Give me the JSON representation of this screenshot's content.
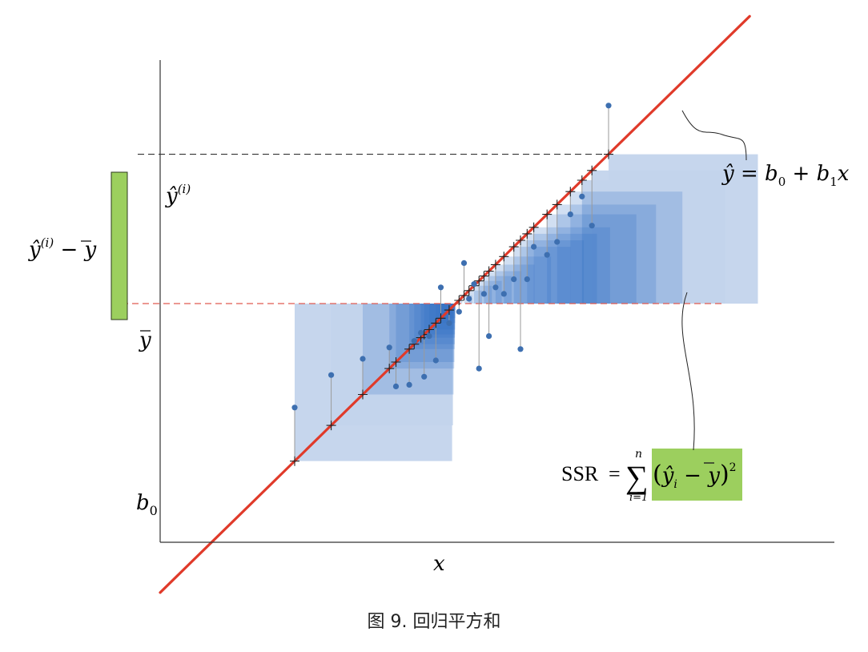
{
  "caption": "图 9. 回归平方和",
  "labels": {
    "x_axis": "x",
    "yhat_i": "ŷ",
    "yhat_i_sup": "(i)",
    "ybar": "y",
    "b0": "b",
    "b0_sub": "0",
    "green_bar": {
      "yhat": "ŷ",
      "sup": "(i)",
      "minus": " − ",
      "ybar": "y"
    },
    "equation": {
      "lhs": "ŷ",
      "eq": " = ",
      "b0": "b",
      "b0_sub": "0",
      "plus": " + ",
      "b1": "b",
      "b1_sub": "1",
      "x": "x"
    },
    "ssr": {
      "lhs": "SSR",
      "eq": "=",
      "sigma": "∑",
      "upper": "n",
      "lower": "i=1",
      "lparen": "(",
      "yhat": "ŷ",
      "sub_i": "i",
      "minus": " − ",
      "ybar": "y",
      "rparen": ")",
      "sup2": "2"
    }
  },
  "colors": {
    "regression_line": "#e03a2a",
    "mean_line": "#e05a50",
    "guide_line": "#333333",
    "square": "#2f6fc2",
    "square_light": "#c3d4ec",
    "point": "#3d6fb0",
    "green": "#9ccf5e",
    "axis": "#333333"
  },
  "chart_data": {
    "type": "scatter",
    "title": "",
    "xlabel": "x",
    "ylabel": "",
    "intercept_b0": -1.23,
    "slope_b1": 1.0,
    "y_mean": 0,
    "xlim": [
      -0.55,
      3.51
    ],
    "ylim": [
      -1.47,
      1.5
    ],
    "highlight_index": 0,
    "points": [
      {
        "x": 2.15,
        "y": 1.22
      },
      {
        "x": 0.26,
        "y": -0.64
      },
      {
        "x": 0.48,
        "y": -0.44
      },
      {
        "x": 0.67,
        "y": -0.34
      },
      {
        "x": 0.83,
        "y": -0.27
      },
      {
        "x": 0.87,
        "y": -0.51
      },
      {
        "x": 0.95,
        "y": -0.5
      },
      {
        "x": 0.98,
        "y": -0.23
      },
      {
        "x": 1.02,
        "y": -0.18
      },
      {
        "x": 1.04,
        "y": -0.45
      },
      {
        "x": 1.07,
        "y": -0.2
      },
      {
        "x": 1.11,
        "y": -0.35
      },
      {
        "x": 1.14,
        "y": 0.1
      },
      {
        "x": 1.19,
        "y": -0.12
      },
      {
        "x": 1.25,
        "y": -0.05
      },
      {
        "x": 1.28,
        "y": 0.25
      },
      {
        "x": 1.31,
        "y": 0.03
      },
      {
        "x": 1.34,
        "y": 0.12
      },
      {
        "x": 1.37,
        "y": -0.4
      },
      {
        "x": 1.4,
        "y": 0.06
      },
      {
        "x": 1.43,
        "y": -0.2
      },
      {
        "x": 1.47,
        "y": 0.1
      },
      {
        "x": 1.52,
        "y": 0.06
      },
      {
        "x": 1.58,
        "y": 0.15
      },
      {
        "x": 1.62,
        "y": -0.28
      },
      {
        "x": 1.66,
        "y": 0.15
      },
      {
        "x": 1.7,
        "y": 0.35
      },
      {
        "x": 1.78,
        "y": 0.3
      },
      {
        "x": 1.84,
        "y": 0.38
      },
      {
        "x": 1.92,
        "y": 0.55
      },
      {
        "x": 1.99,
        "y": 0.66
      },
      {
        "x": 2.05,
        "y": 0.48
      }
    ]
  }
}
